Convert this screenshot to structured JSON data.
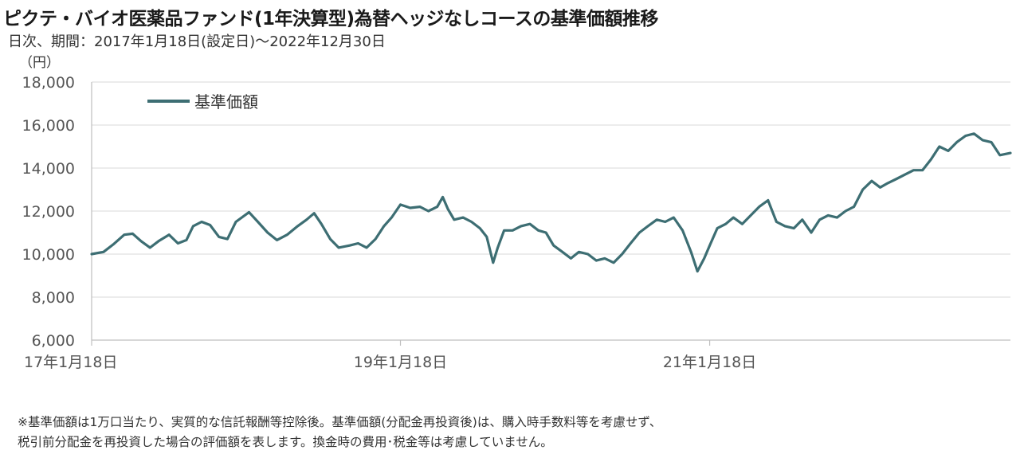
{
  "header": {
    "title": "ピクテ・バイオ医薬品ファンド(1年決算型)為替ヘッジなしコースの基準価額推移",
    "subtitle": "日次、期間：2017年1月18日(設定日)～2022年12月30日",
    "unit": "（円）"
  },
  "notes": {
    "line1": "※基準価額は1万口当たり、実質的な信託報酬等控除後。基準価額(分配金再投資後)は、購入時手数料等を考慮せず、",
    "line2": "税引前分配金を再投資した場合の評価額を表します。換金時の費用･税金等は考慮していません。"
  },
  "chart_data": {
    "type": "line",
    "ylim": [
      6000,
      18000
    ],
    "y_ticks": [
      6000,
      8000,
      10000,
      12000,
      14000,
      16000,
      18000
    ],
    "y_tick_labels": [
      "6,000",
      "8,000",
      "10,000",
      "12,000",
      "14,000",
      "16,000",
      "18,000"
    ],
    "xlim": [
      "2017-01-18",
      "2022-12-30"
    ],
    "x_ticks": [
      "2017-01-18",
      "2019-01-18",
      "2021-01-18"
    ],
    "x_tick_labels": [
      "17年1月18日",
      "19年1月18日",
      "21年1月18日"
    ],
    "grid": "horizontal",
    "legend": "top-left",
    "series": [
      {
        "name": "基準価額",
        "color": "#3d6e73",
        "points": [
          [
            "2017-01-18",
            10000
          ],
          [
            "2017-02-15",
            10100
          ],
          [
            "2017-03-10",
            10450
          ],
          [
            "2017-04-05",
            10900
          ],
          [
            "2017-04-25",
            10950
          ],
          [
            "2017-05-15",
            10600
          ],
          [
            "2017-06-05",
            10300
          ],
          [
            "2017-06-25",
            10600
          ],
          [
            "2017-07-20",
            10900
          ],
          [
            "2017-08-10",
            10500
          ],
          [
            "2017-08-30",
            10650
          ],
          [
            "2017-09-15",
            11300
          ],
          [
            "2017-10-05",
            11500
          ],
          [
            "2017-10-25",
            11350
          ],
          [
            "2017-11-15",
            10800
          ],
          [
            "2017-12-05",
            10700
          ],
          [
            "2017-12-25",
            11500
          ],
          [
            "2018-01-25",
            11950
          ],
          [
            "2018-02-15",
            11500
          ],
          [
            "2018-03-10",
            11000
          ],
          [
            "2018-04-01",
            10650
          ],
          [
            "2018-04-25",
            10900
          ],
          [
            "2018-05-20",
            11300
          ],
          [
            "2018-06-10",
            11600
          ],
          [
            "2018-06-28",
            11900
          ],
          [
            "2018-07-15",
            11400
          ],
          [
            "2018-08-05",
            10700
          ],
          [
            "2018-08-25",
            10300
          ],
          [
            "2018-09-20",
            10400
          ],
          [
            "2018-10-10",
            10500
          ],
          [
            "2018-10-30",
            10300
          ],
          [
            "2018-11-20",
            10700
          ],
          [
            "2018-12-10",
            11300
          ],
          [
            "2018-12-28",
            11700
          ],
          [
            "2019-01-18",
            12300
          ],
          [
            "2019-02-10",
            12150
          ],
          [
            "2019-03-05",
            12200
          ],
          [
            "2019-03-25",
            12000
          ],
          [
            "2019-04-15",
            12200
          ],
          [
            "2019-04-28",
            12650
          ],
          [
            "2019-05-10",
            12100
          ],
          [
            "2019-05-25",
            11600
          ],
          [
            "2019-06-15",
            11700
          ],
          [
            "2019-07-05",
            11500
          ],
          [
            "2019-07-25",
            11200
          ],
          [
            "2019-08-10",
            10800
          ],
          [
            "2019-08-25",
            9600
          ],
          [
            "2019-09-05",
            10300
          ],
          [
            "2019-09-20",
            11100
          ],
          [
            "2019-10-10",
            11100
          ],
          [
            "2019-10-30",
            11300
          ],
          [
            "2019-11-20",
            11400
          ],
          [
            "2019-12-10",
            11100
          ],
          [
            "2019-12-28",
            11000
          ],
          [
            "2020-01-15",
            10400
          ],
          [
            "2020-02-05",
            10100
          ],
          [
            "2020-02-25",
            9800
          ],
          [
            "2020-03-15",
            10100
          ],
          [
            "2020-04-05",
            10000
          ],
          [
            "2020-04-25",
            9700
          ],
          [
            "2020-05-15",
            9800
          ],
          [
            "2020-06-05",
            9600
          ],
          [
            "2020-06-25",
            10000
          ],
          [
            "2020-07-15",
            10500
          ],
          [
            "2020-08-05",
            11000
          ],
          [
            "2020-08-25",
            11300
          ],
          [
            "2020-09-15",
            11600
          ],
          [
            "2020-10-05",
            11500
          ],
          [
            "2020-10-25",
            11700
          ],
          [
            "2020-11-15",
            11100
          ],
          [
            "2020-12-05",
            10100
          ],
          [
            "2020-12-20",
            9200
          ],
          [
            "2021-01-05",
            9800
          ],
          [
            "2021-01-18",
            10400
          ],
          [
            "2021-02-05",
            11200
          ],
          [
            "2021-02-25",
            11400
          ],
          [
            "2021-03-15",
            11700
          ],
          [
            "2021-04-05",
            11400
          ],
          [
            "2021-04-25",
            11800
          ],
          [
            "2021-05-15",
            12200
          ],
          [
            "2021-06-05",
            12500
          ],
          [
            "2021-06-25",
            11500
          ],
          [
            "2021-07-15",
            11300
          ],
          [
            "2021-08-05",
            11200
          ],
          [
            "2021-08-25",
            11600
          ],
          [
            "2021-09-15",
            11000
          ],
          [
            "2021-10-05",
            11600
          ],
          [
            "2021-10-25",
            11800
          ],
          [
            "2021-11-15",
            11700
          ],
          [
            "2021-12-05",
            12000
          ],
          [
            "2021-12-25",
            12200
          ],
          [
            "2022-01-15",
            13000
          ],
          [
            "2022-02-05",
            13400
          ],
          [
            "2022-02-25",
            13100
          ],
          [
            "2022-03-15",
            13300
          ],
          [
            "2022-04-05",
            13500
          ],
          [
            "2022-04-25",
            13700
          ],
          [
            "2022-05-15",
            13900
          ],
          [
            "2022-06-05",
            13900
          ],
          [
            "2022-06-25",
            14400
          ],
          [
            "2022-07-15",
            15000
          ],
          [
            "2022-08-05",
            14800
          ],
          [
            "2022-08-25",
            15200
          ],
          [
            "2022-09-15",
            15500
          ],
          [
            "2022-10-05",
            15600
          ],
          [
            "2022-10-25",
            15300
          ],
          [
            "2022-11-15",
            15200
          ],
          [
            "2022-12-05",
            14600
          ],
          [
            "2022-12-30",
            14700
          ]
        ]
      }
    ]
  }
}
